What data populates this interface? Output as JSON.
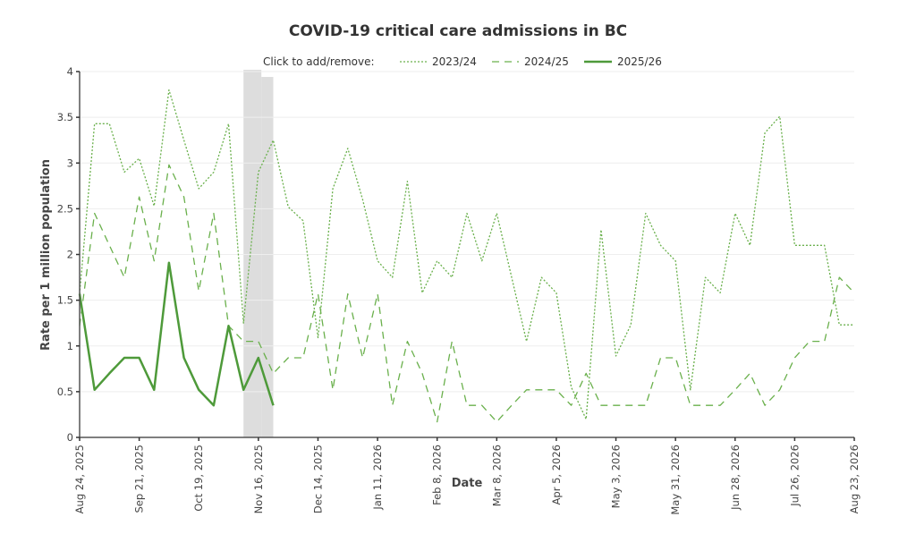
{
  "chart_data": {
    "type": "line",
    "title": "COVID-19 critical care admissions in BC",
    "xlabel": "Date",
    "ylabel": "Rate per 1 million population",
    "ylim": [
      0,
      4
    ],
    "yticks": [
      "0",
      "0.5",
      "1",
      "1.5",
      "2",
      "2.5",
      "3",
      "3.5",
      "4"
    ],
    "ytick_values": [
      0,
      0.5,
      1,
      1.5,
      2,
      2.5,
      3,
      3.5,
      4
    ],
    "x_week_count": 53,
    "xtick_labels": [
      "Aug 24, 2025",
      "Sep 21, 2025",
      "Oct 19, 2025",
      "Nov 16, 2025",
      "Dec 14, 2025",
      "Jan 11, 2026",
      "Feb 8, 2026",
      "Mar 8, 2026",
      "Apr 5, 2026",
      "May 3, 2026",
      "May 31, 2026",
      "Jun 28, 2026",
      "Jul 26, 2026",
      "Aug 23, 2026"
    ],
    "xtick_week_index": [
      0,
      4,
      8,
      12,
      16,
      20,
      24,
      28,
      32,
      36,
      40,
      44,
      48,
      52
    ],
    "grid": true,
    "legend": {
      "prompt": "Click to add/remove:",
      "placement": "top-center"
    },
    "highlight_band": {
      "start_week": 11,
      "end_week": 13,
      "color": "#dddddd"
    },
    "series": [
      {
        "name": "2023/24",
        "style": "dotted",
        "color": "#6ab04c",
        "values": [
          1.57,
          3.43,
          3.43,
          2.9,
          3.05,
          2.53,
          3.8,
          3.25,
          2.72,
          2.9,
          3.43,
          1.25,
          2.9,
          3.25,
          2.52,
          2.37,
          1.09,
          2.72,
          3.16,
          2.6,
          1.93,
          1.75,
          2.8,
          1.58,
          1.93,
          1.75,
          2.45,
          1.93,
          2.45,
          1.75,
          1.05,
          1.75,
          1.58,
          0.55,
          0.2,
          2.27,
          0.89,
          1.23,
          2.45,
          2.1,
          1.93,
          0.52,
          1.75,
          1.58,
          2.45,
          2.1,
          3.33,
          3.51,
          2.1,
          2.1,
          2.1,
          1.23,
          1.23
        ]
      },
      {
        "name": "2024/25",
        "style": "dashed",
        "color": "#6ab04c",
        "values": [
          1.22,
          2.45,
          2.1,
          1.75,
          2.63,
          1.93,
          2.98,
          2.63,
          1.6,
          2.45,
          1.22,
          1.05,
          1.05,
          0.7,
          0.87,
          0.87,
          1.57,
          0.52,
          1.57,
          0.87,
          1.57,
          0.35,
          1.05,
          0.7,
          0.17,
          1.05,
          0.35,
          0.35,
          0.17,
          0.35,
          0.52,
          0.52,
          0.52,
          0.35,
          0.7,
          0.35,
          0.35,
          0.35,
          0.35,
          0.87,
          0.87,
          0.35,
          0.35,
          0.35,
          0.52,
          0.7,
          0.35,
          0.52,
          0.87,
          1.05,
          1.05,
          1.75,
          1.58
        ]
      },
      {
        "name": "2025/26",
        "style": "solid",
        "color": "#4e9a3a",
        "values": [
          1.57,
          0.52,
          0.7,
          0.87,
          0.87,
          0.52,
          1.91,
          0.87,
          0.52,
          0.35,
          1.22,
          0.52,
          0.87,
          0.35
        ]
      }
    ]
  }
}
